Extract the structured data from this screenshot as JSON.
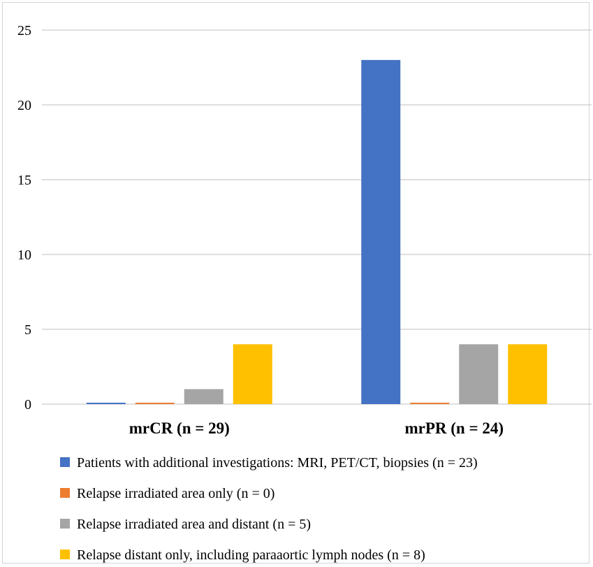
{
  "chart_data": {
    "type": "bar",
    "categories": [
      "mrCR (n = 29)",
      "mrPR (n = 24)"
    ],
    "series": [
      {
        "name": "Patients with additional investigations: MRI, PET/CT, biopsies (n = 23)",
        "values": [
          0,
          23
        ],
        "color": "#4472C4"
      },
      {
        "name": "Relapse irradiated area only (n = 0)",
        "values": [
          0,
          0
        ],
        "color": "#ED7D31"
      },
      {
        "name": "Relapse irradiated area and distant (n = 5)",
        "values": [
          1,
          4
        ],
        "color": "#A5A5A5"
      },
      {
        "name": "Relapse distant only, including paraaortic lymph nodes (n = 8)",
        "values": [
          4,
          4
        ],
        "color": "#FFC000"
      }
    ],
    "ylim": [
      0,
      25
    ],
    "yticks": [
      "0",
      "5",
      "10",
      "15",
      "20",
      "25"
    ],
    "grid": true,
    "legend_position": "bottom",
    "title": "",
    "xlabel": "",
    "ylabel": ""
  }
}
